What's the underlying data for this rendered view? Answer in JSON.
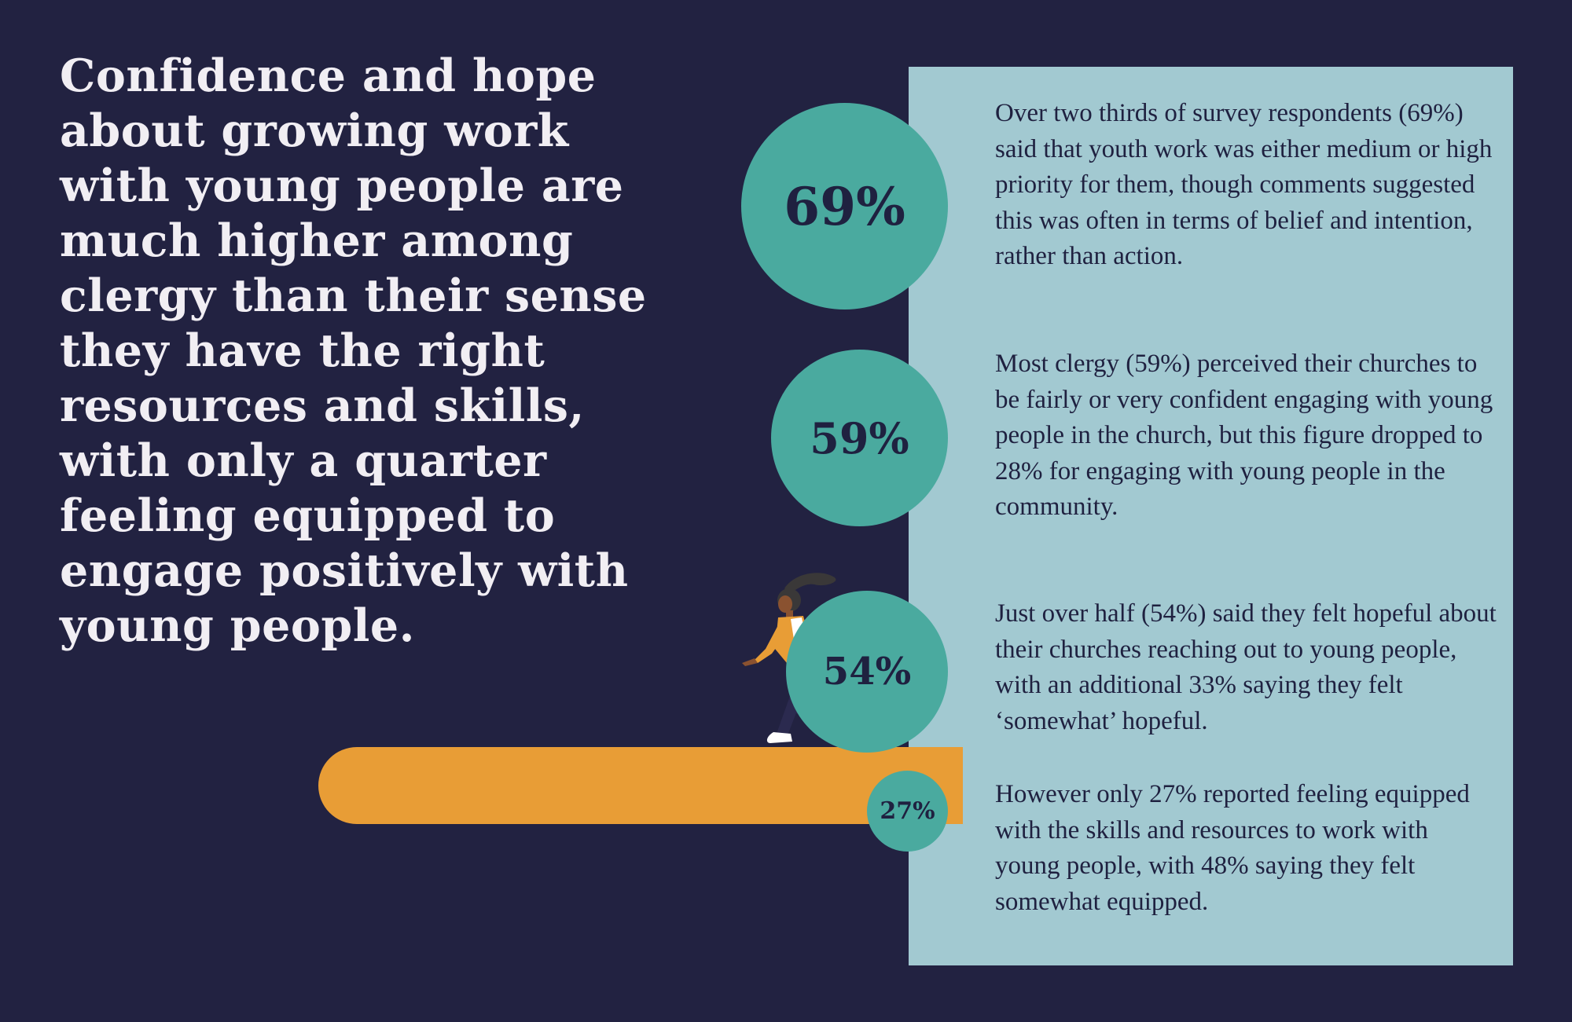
{
  "headline": "Confidence and hope about growing work with young people are much higher among clergy than their sense they have the right resources and skills, with only a quarter feeling equipped to engage positively with young people.",
  "stats": [
    {
      "value": "69%",
      "text": "Over two thirds of survey respondents (69%) said that youth work was either medium or high priority for them, though comments suggested this was often in terms of belief and intention, rather than action."
    },
    {
      "value": "59%",
      "text": "Most clergy (59%) perceived their churches to be fairly or very confident engaging with young people in the church, but this figure dropped to 28% for engaging with young people in the community."
    },
    {
      "value": "54%",
      "text": "Just over half (54%) said they felt hopeful about their churches reaching out to young people, with an additional 33% saying they felt ‘somewhat’ hopeful."
    },
    {
      "value": "27%",
      "text": "However only 27% reported feeling equipped with the skills and resources to work with young people, with 48% saying they felt somewhat equipped."
    }
  ],
  "colors": {
    "background": "#222241",
    "panel": "#a2c9d1",
    "circle": "#4aaa9f",
    "bar": "#e89d36",
    "headline": "#f1eef3",
    "text_dark": "#1f2140"
  },
  "icons": {
    "figure": "walking-person-illustration"
  }
}
